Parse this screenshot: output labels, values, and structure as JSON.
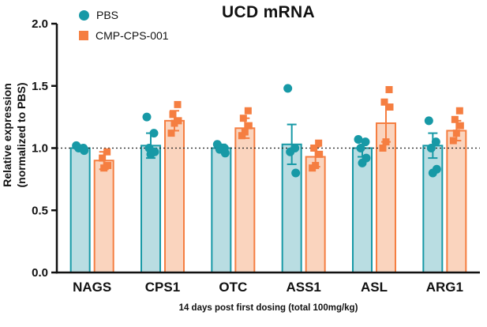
{
  "chart_data": {
    "type": "bar",
    "title": "UCD mRNA",
    "xlabel": "14 days post first dosing (total 100mg/kg)",
    "ylabel_lines": [
      "Relative expression",
      "(normalized to PBS)"
    ],
    "ylim": [
      0,
      2.0
    ],
    "yticks": [
      0.0,
      0.5,
      1.0,
      1.5,
      2.0
    ],
    "grid": false,
    "reference_line": 1.0,
    "legend_position": "top-left",
    "categories": [
      "NAGS",
      "CPS1",
      "OTC",
      "ASS1",
      "ASL",
      "ARG1"
    ],
    "series": [
      {
        "name": "PBS",
        "marker": "circle",
        "color": "#1799a6",
        "bar_fill": "#b9dde2",
        "means": [
          1.0,
          1.02,
          1.0,
          1.03,
          1.0,
          1.02
        ],
        "errors": [
          0.02,
          0.1,
          0.03,
          0.16,
          0.07,
          0.1
        ],
        "points": [
          [
            1.02,
            1.0,
            1.0,
            0.98
          ],
          [
            1.25,
            1.12,
            1.0,
            0.97,
            0.95
          ],
          [
            1.03,
            1.0,
            0.99,
            0.96
          ],
          [
            1.48,
            1.0,
            0.97,
            0.8
          ],
          [
            1.07,
            1.05,
            1.0,
            0.92,
            0.88
          ],
          [
            1.22,
            1.05,
            1.0,
            0.83,
            0.8
          ]
        ]
      },
      {
        "name": "CMP-CPS-001",
        "marker": "square",
        "color": "#f57e41",
        "bar_fill": "#fad4be",
        "means": [
          0.9,
          1.22,
          1.16,
          0.93,
          1.2,
          1.14
        ],
        "errors": [
          0.07,
          0.08,
          0.08,
          0.08,
          0.15,
          0.08
        ],
        "points": [
          [
            0.97,
            0.92,
            0.86,
            0.84
          ],
          [
            1.35,
            1.27,
            1.22,
            1.2,
            1.12
          ],
          [
            1.3,
            1.24,
            1.18,
            1.13,
            1.1
          ],
          [
            1.04,
            1.0,
            0.95,
            0.86,
            0.84
          ],
          [
            1.47,
            1.37,
            1.33,
            1.05,
            1.0
          ],
          [
            1.3,
            1.23,
            1.18,
            1.12,
            1.06
          ]
        ]
      }
    ]
  }
}
